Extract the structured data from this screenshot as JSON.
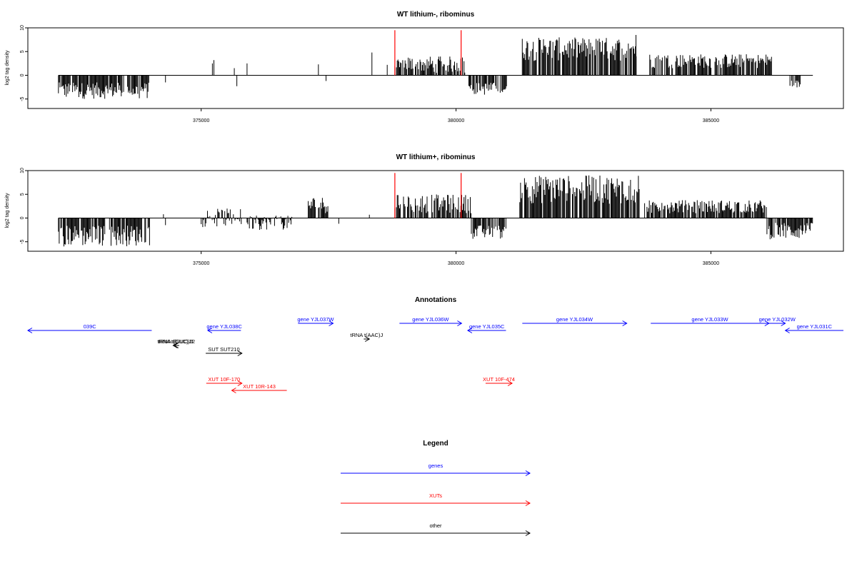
{
  "colors": {
    "genes": "#0000ff",
    "xuts": "#ff0000",
    "other": "#000000",
    "marker": "#ff0000",
    "signal": "#000000"
  },
  "chart_data": [
    {
      "type": "bar",
      "title": "WT lithium-, ribominus",
      "ylabel": "log2 tag density",
      "xlim": [
        371600,
        387600
      ],
      "ylim": [
        -7,
        10
      ],
      "xticks": [
        "375000",
        "380000",
        "385000"
      ],
      "yticks": [
        "10",
        "5",
        "0",
        "-5"
      ],
      "baseline": [
        372200,
        387000
      ],
      "markers": [
        {
          "x": 378800,
          "y": 9.5
        },
        {
          "x": 380100,
          "y": 9.5
        }
      ],
      "segments": [
        {
          "from": 372200,
          "to": 374000,
          "min": -5,
          "max": -1.5
        },
        {
          "points": [
            [
              374300,
              -1.5
            ],
            [
              375220,
              2.5
            ],
            [
              375250,
              3.2
            ],
            [
              375650,
              1.5
            ],
            [
              375700,
              -2.3
            ],
            [
              375900,
              2.5
            ],
            [
              377300,
              2.3
            ],
            [
              377450,
              -1.2
            ],
            [
              378350,
              4.8
            ],
            [
              378650,
              2.2
            ]
          ]
        },
        {
          "from": 378800,
          "to": 380200,
          "min": 0.5,
          "max": 4
        },
        {
          "from": 380250,
          "to": 381000,
          "min": -4.2,
          "max": -1.5
        },
        {
          "from": 381300,
          "to": 383550,
          "min": 3,
          "max": 8
        },
        {
          "points": [
            [
              383530,
              8.5
            ]
          ]
        },
        {
          "from": 383800,
          "to": 386200,
          "min": 1.5,
          "max": 4.5
        },
        {
          "from": 386550,
          "to": 386760,
          "min": -2.8,
          "max": -1
        }
      ]
    },
    {
      "type": "bar",
      "title": "WT lithium+, ribominus",
      "ylabel": "log2 tag density",
      "xlim": [
        371600,
        387600
      ],
      "ylim": [
        -7,
        10
      ],
      "xticks": [
        "375000",
        "380000",
        "385000"
      ],
      "yticks": [
        "10",
        "5",
        "0",
        "-5"
      ],
      "baseline": [
        372200,
        387000
      ],
      "markers": [
        {
          "x": 378800,
          "y": 9.5
        },
        {
          "x": 380100,
          "y": 9.5
        }
      ],
      "segments": [
        {
          "from": 372200,
          "to": 374000,
          "min": -6,
          "max": -1.5
        },
        {
          "points": [
            [
              374260,
              0.8
            ],
            [
              374300,
              -1.5
            ]
          ]
        },
        {
          "from": 375000,
          "to": 375800,
          "min": -2,
          "max": 2
        },
        {
          "from": 375900,
          "to": 376800,
          "min": -2.5,
          "max": 0.5
        },
        {
          "from": 377100,
          "to": 377500,
          "min": 1,
          "max": 4.5
        },
        {
          "points": [
            [
              377700,
              -1.2
            ],
            [
              378300,
              0.7
            ]
          ]
        },
        {
          "from": 378800,
          "to": 380300,
          "min": 1,
          "max": 5
        },
        {
          "from": 380300,
          "to": 381000,
          "min": -4.5,
          "max": -1.5
        },
        {
          "from": 381250,
          "to": 383600,
          "min": 3,
          "max": 9
        },
        {
          "from": 383700,
          "to": 386100,
          "min": 1,
          "max": 3.8
        },
        {
          "points": [
            [
              385600,
              1.2
            ],
            [
              385700,
              1.4
            ]
          ]
        },
        {
          "from": 386100,
          "to": 387000,
          "min": -4.5,
          "max": -1
        }
      ]
    }
  ],
  "annotations": {
    "title": "Annotations",
    "xlim": [
      371600,
      387600
    ],
    "items": [
      {
        "label": "039C",
        "type": "gene",
        "start": 371600,
        "end": 374030,
        "strand": "-",
        "row": 0
      },
      {
        "label": "gene YJL038C",
        "type": "gene",
        "start": 375130,
        "end": 375780,
        "strand": "-",
        "row": 0
      },
      {
        "label": "gene YJL037W",
        "type": "gene",
        "start": 376900,
        "end": 377590,
        "strand": "+",
        "row": -1
      },
      {
        "label": "gene YJL036W",
        "type": "gene",
        "start": 378890,
        "end": 380110,
        "strand": "+",
        "row": -1
      },
      {
        "label": "gene YJL035C",
        "type": "gene",
        "start": 380230,
        "end": 380980,
        "strand": "-",
        "row": 0
      },
      {
        "label": "gene YJL034W",
        "type": "gene",
        "start": 381300,
        "end": 383350,
        "strand": "+",
        "row": -1
      },
      {
        "label": "gene YJL033W",
        "type": "gene",
        "start": 383820,
        "end": 386140,
        "strand": "+",
        "row": -1
      },
      {
        "label": "gene YJL032W",
        "type": "gene",
        "start": 386140,
        "end": 386460,
        "strand": "+",
        "row": -1
      },
      {
        "label": "gene YJL031C",
        "type": "gene",
        "start": 386460,
        "end": 387600,
        "strand": "-",
        "row": 0
      },
      {
        "label": "tRNA t(AAC)J",
        "type": "other",
        "start": 378190,
        "end": 378300,
        "strand": "+",
        "row": 1
      },
      {
        "label": "tRNA t(GUC)J1",
        "type": "other",
        "start": 374450,
        "end": 374550,
        "strand": "-",
        "row": 2
      },
      {
        "label": "tRNA t(GUC)J2",
        "type": "other",
        "start": 374470,
        "end": 374570,
        "strand": "-",
        "row": 2
      },
      {
        "label": "SUT SUT210",
        "type": "other",
        "start": 375090,
        "end": 375800,
        "strand": "+",
        "row": 3
      },
      {
        "label": "XUT 10F-170",
        "type": "xut",
        "start": 375100,
        "end": 375800,
        "strand": "+",
        "row": 4
      },
      {
        "label": "XUT 10R-143",
        "type": "xut",
        "start": 375600,
        "end": 376680,
        "strand": "-",
        "row": 5
      },
      {
        "label": "XUT 10F-474",
        "type": "xut",
        "start": 380580,
        "end": 381100,
        "strand": "+",
        "row": 4
      }
    ]
  },
  "legend": {
    "title": "Legend",
    "items": [
      {
        "label": "genes",
        "type": "gene"
      },
      {
        "label": "XUTs",
        "type": "xut"
      },
      {
        "label": "other",
        "type": "other"
      }
    ]
  }
}
